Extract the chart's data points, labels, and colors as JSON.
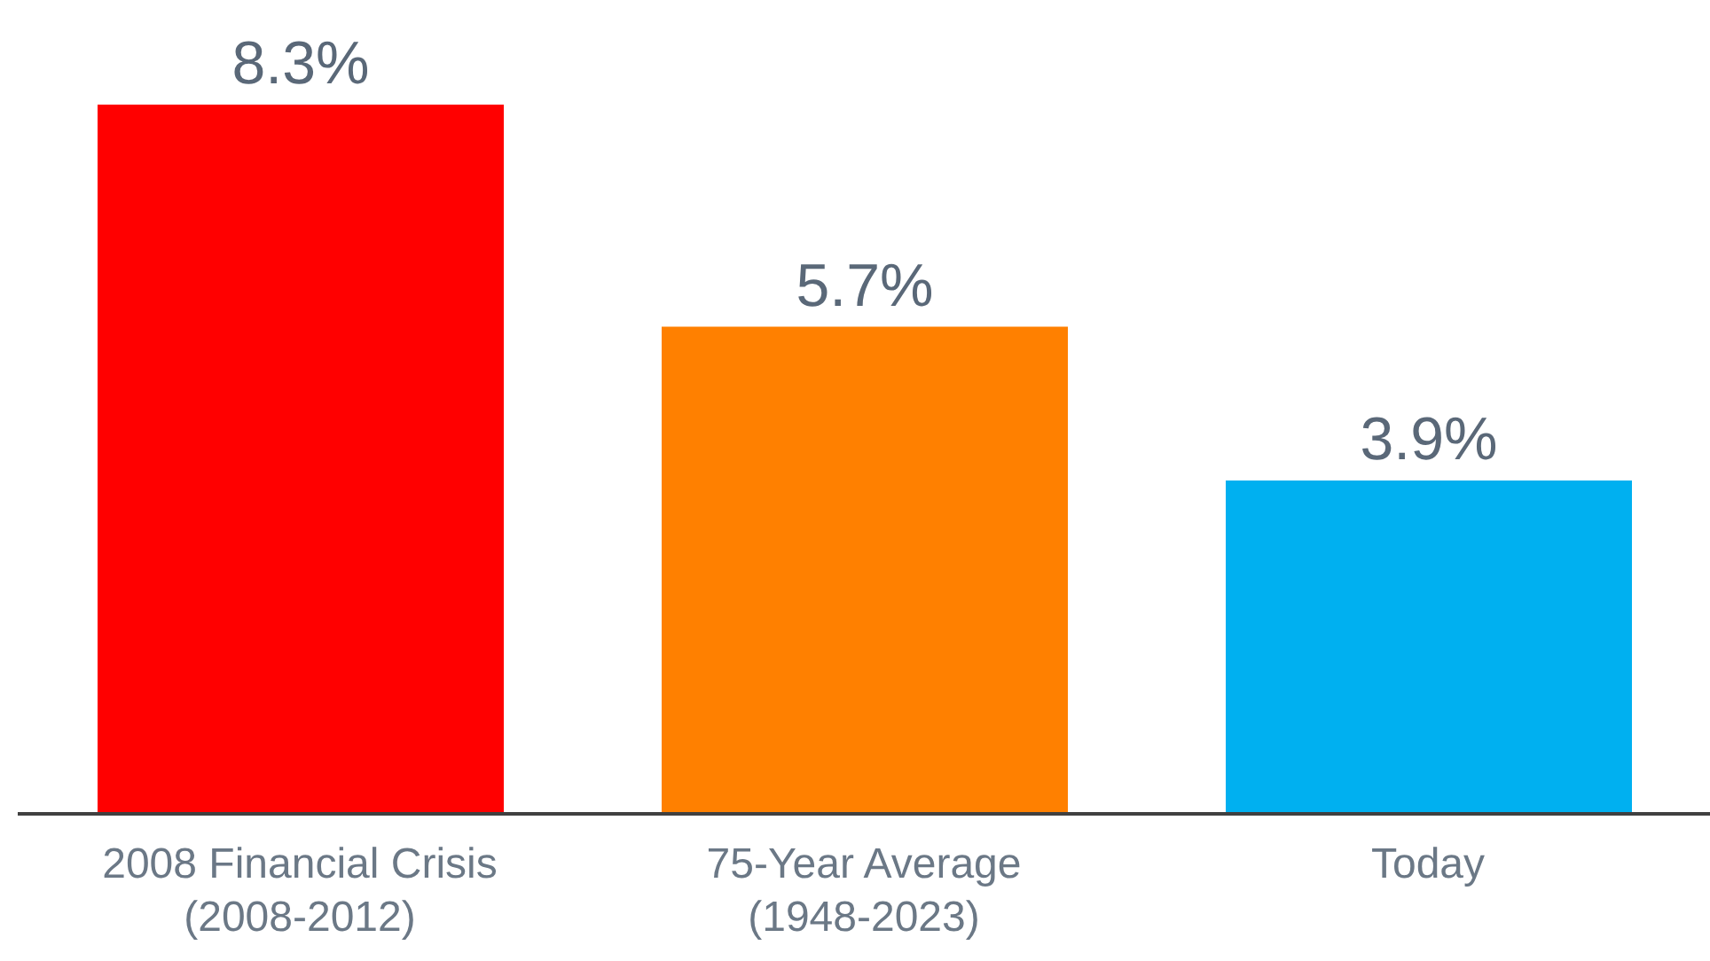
{
  "chart_data": {
    "type": "bar",
    "categories": [
      "2008 Financial Crisis\n(2008-2012)",
      "75-Year Average\n(1948-2023)",
      "Today"
    ],
    "values": [
      8.3,
      5.7,
      3.9
    ],
    "colors": [
      "#ff0000",
      "#ff8000",
      "#00b0f0"
    ],
    "value_labels": [
      "8.3%",
      "5.7%",
      "3.9%"
    ]
  }
}
